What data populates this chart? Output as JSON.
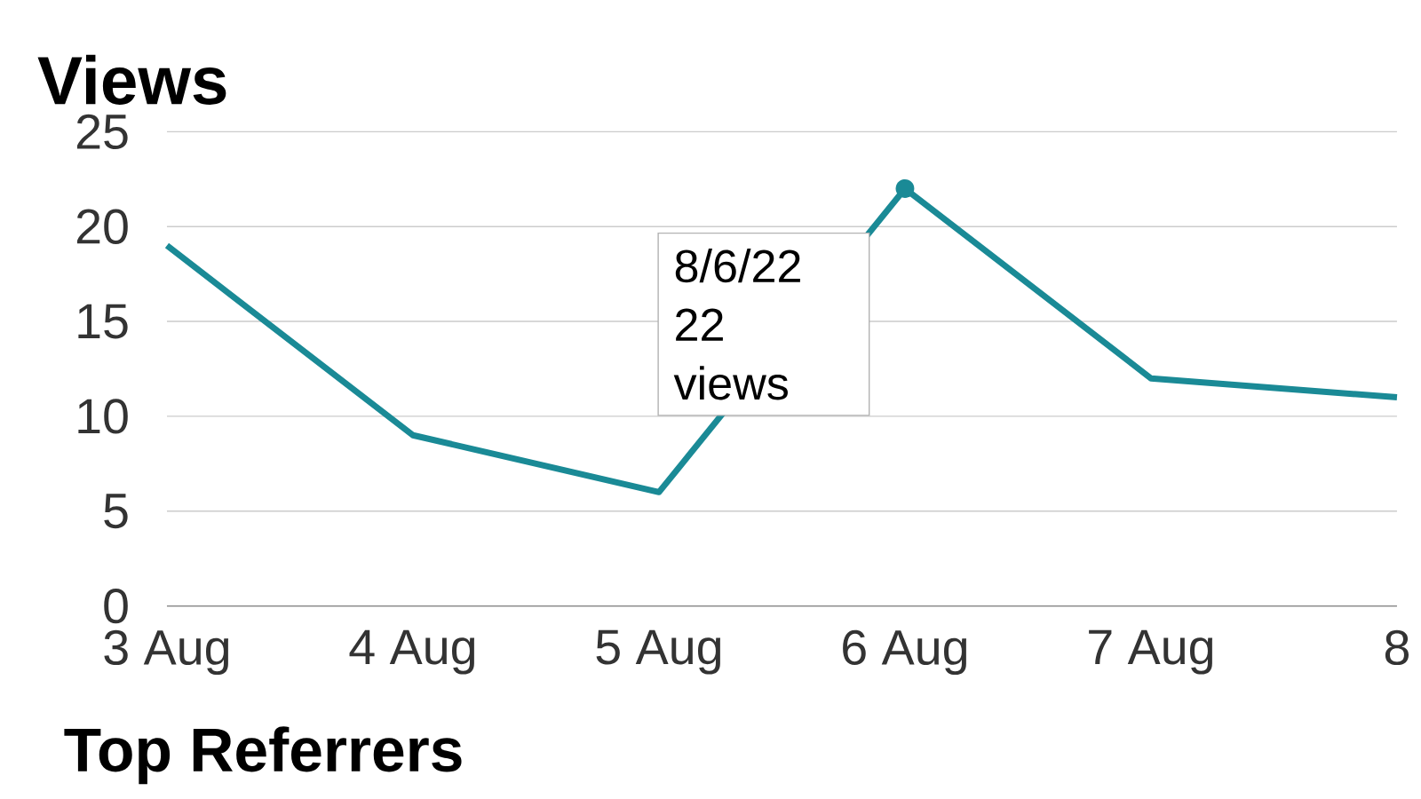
{
  "chart_data": {
    "type": "line",
    "title": "Views",
    "categories": [
      "3 Aug",
      "4 Aug",
      "5 Aug",
      "6 Aug",
      "7 Aug",
      "8"
    ],
    "series": [
      {
        "color": "#1a8a96",
        "values": [
          19,
          9,
          6,
          22,
          12,
          11
        ]
      }
    ],
    "ylim": [
      0,
      25
    ],
    "yticks": [
      0,
      5,
      10,
      15,
      20,
      25
    ],
    "grid": "y",
    "marker": "none",
    "line_style": "solid",
    "annotations": [
      {
        "text": "8/6/22 22 views",
        "x": "6 Aug",
        "y": 22
      },
      "Top Referrers"
    ]
  }
}
